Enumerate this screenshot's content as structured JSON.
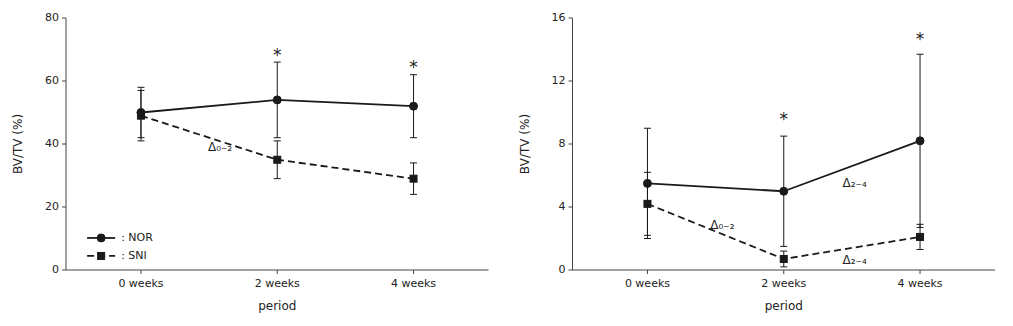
{
  "chart_data": [
    {
      "type": "line",
      "x_label": "period",
      "y_label": "BV/TV (%)",
      "x": [
        0,
        1,
        2
      ],
      "xlim": [
        -0.55,
        2.55
      ],
      "xticks": [
        {
          "value": 0,
          "label": "0 weeks"
        },
        {
          "value": 1,
          "label": "2 weeks"
        },
        {
          "value": 2,
          "label": "4 weeks"
        }
      ],
      "ylim": [
        0,
        80
      ],
      "yticks": [
        0,
        20,
        40,
        60,
        80
      ],
      "grid": false,
      "legend": "lower left",
      "series": [
        {
          "name": ": NOR",
          "color": "#1a1a1a",
          "line_style": "solid",
          "marker": "circle",
          "values": [
            50,
            54,
            52
          ],
          "errors": [
            8,
            12,
            10
          ]
        },
        {
          "name": ": SNI",
          "color": "#1a1a1a",
          "line_style": "dashed",
          "marker": "square",
          "values": [
            49,
            35,
            29
          ],
          "errors": [
            8,
            6,
            5
          ]
        }
      ],
      "annotations": [
        {
          "text": "*",
          "x": 1,
          "y": 68
        },
        {
          "text": "*",
          "x": 2,
          "y": 64
        },
        {
          "text": "Δ₀₋₂",
          "x": 0.58,
          "y": 39
        }
      ]
    },
    {
      "type": "line",
      "x_label": "period",
      "y_label": "BV/TV (%)",
      "x": [
        0,
        1,
        2
      ],
      "xlim": [
        -0.55,
        2.55
      ],
      "xticks": [
        {
          "value": 0,
          "label": "0 weeks"
        },
        {
          "value": 1,
          "label": "2 weeks"
        },
        {
          "value": 2,
          "label": "4 weeks"
        }
      ],
      "ylim": [
        0,
        16
      ],
      "yticks": [
        0,
        4,
        8,
        12,
        16
      ],
      "grid": false,
      "series": [
        {
          "color": "#1a1a1a",
          "line_style": "solid",
          "marker": "circle",
          "values": [
            5.5,
            5.0,
            8.2
          ],
          "errors": [
            3.5,
            3.5,
            5.5
          ]
        },
        {
          "color": "#1a1a1a",
          "line_style": "dashed",
          "marker": "square",
          "values": [
            4.2,
            0.7,
            2.1
          ],
          "errors": [
            2.0,
            0.5,
            0.8
          ]
        }
      ],
      "annotations": [
        {
          "text": "*",
          "x": 1,
          "y": 9.5
        },
        {
          "text": "*",
          "x": 2,
          "y": 14.6
        },
        {
          "text": "Δ₀₋₂",
          "x": 0.55,
          "y": 2.8
        },
        {
          "text": "Δ₂₋₄",
          "x": 1.52,
          "y": 5.5
        },
        {
          "text": "Δ₂₋₄",
          "x": 1.52,
          "y": 0.6
        }
      ]
    }
  ]
}
